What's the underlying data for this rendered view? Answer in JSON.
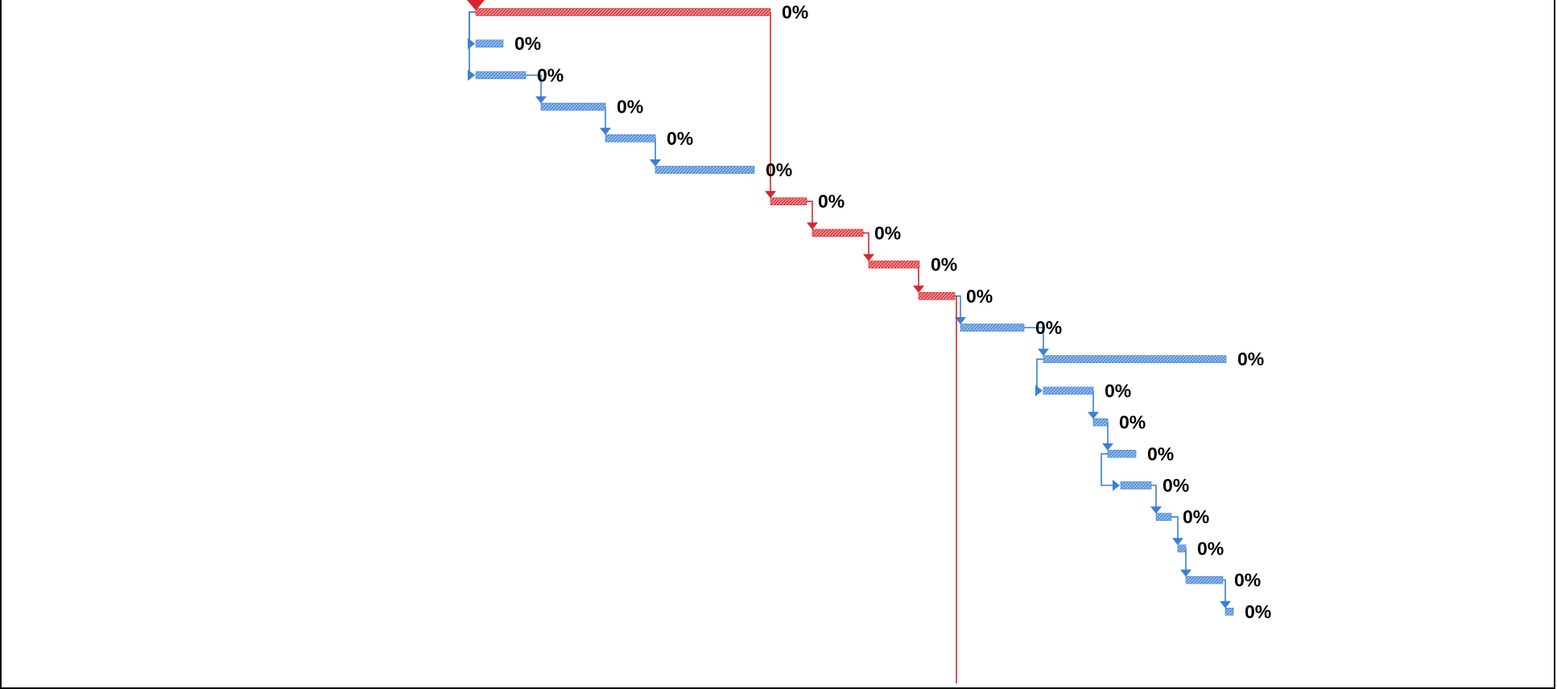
{
  "chart_data": {
    "type": "gantt",
    "title": "",
    "colors": {
      "critical": "#d8262c",
      "normal": "#3a7fd6",
      "label": "#000000"
    },
    "tasks": [
      {
        "id": 1,
        "start": 4.3,
        "finish": 40.9,
        "progress_label": "0%",
        "critical": true,
        "predecessor": null
      },
      {
        "id": 2,
        "start": 4.3,
        "finish": 7.7,
        "progress_label": "0%",
        "critical": false,
        "predecessor": 1
      },
      {
        "id": 3,
        "start": 4.3,
        "finish": 10.5,
        "progress_label": "0%",
        "critical": false,
        "predecessor": 1
      },
      {
        "id": 4,
        "start": 12.4,
        "finish": 20.4,
        "progress_label": "0%",
        "critical": false,
        "predecessor": 3
      },
      {
        "id": 5,
        "start": 20.4,
        "finish": 26.6,
        "progress_label": "0%",
        "critical": false,
        "predecessor": 4
      },
      {
        "id": 6,
        "start": 26.6,
        "finish": 38.9,
        "progress_label": "0%",
        "critical": false,
        "predecessor": 5
      },
      {
        "id": 7,
        "start": 40.9,
        "finish": 45.4,
        "progress_label": "0%",
        "critical": true,
        "predecessor": 1
      },
      {
        "id": 8,
        "start": 46.1,
        "finish": 52.4,
        "progress_label": "0%",
        "critical": true,
        "predecessor": 7
      },
      {
        "id": 9,
        "start": 53.1,
        "finish": 59.4,
        "progress_label": "0%",
        "critical": true,
        "predecessor": 8
      },
      {
        "id": 10,
        "start": 59.3,
        "finish": 63.8,
        "progress_label": "0%",
        "critical": true,
        "predecessor": 9
      },
      {
        "id": 11,
        "start": 64.5,
        "finish": 72.4,
        "progress_label": "0%",
        "critical": false,
        "predecessor": 10
      },
      {
        "id": 12,
        "start": 74.8,
        "finish": 97.5,
        "progress_label": "0%",
        "critical": false,
        "predecessor": 11
      },
      {
        "id": 13,
        "start": 74.8,
        "finish": 81.0,
        "progress_label": "0%",
        "critical": false,
        "predecessor": 12
      },
      {
        "id": 14,
        "start": 81.0,
        "finish": 82.8,
        "progress_label": "0%",
        "critical": false,
        "predecessor": 13
      },
      {
        "id": 15,
        "start": 82.8,
        "finish": 86.3,
        "progress_label": "0%",
        "critical": false,
        "predecessor": 14
      },
      {
        "id": 16,
        "start": 84.4,
        "finish": 88.2,
        "progress_label": "0%",
        "critical": false,
        "predecessor": 15
      },
      {
        "id": 17,
        "start": 88.8,
        "finish": 90.7,
        "progress_label": "0%",
        "critical": false,
        "predecessor": 16
      },
      {
        "id": 18,
        "start": 91.5,
        "finish": 92.5,
        "progress_label": "0%",
        "critical": false,
        "predecessor": 17
      },
      {
        "id": 19,
        "start": 92.5,
        "finish": 97.1,
        "progress_label": "0%",
        "critical": false,
        "predecessor": 18
      },
      {
        "id": 20,
        "start": 97.4,
        "finish": 98.4,
        "progress_label": "0%",
        "critical": false,
        "predecessor": 19
      }
    ]
  }
}
